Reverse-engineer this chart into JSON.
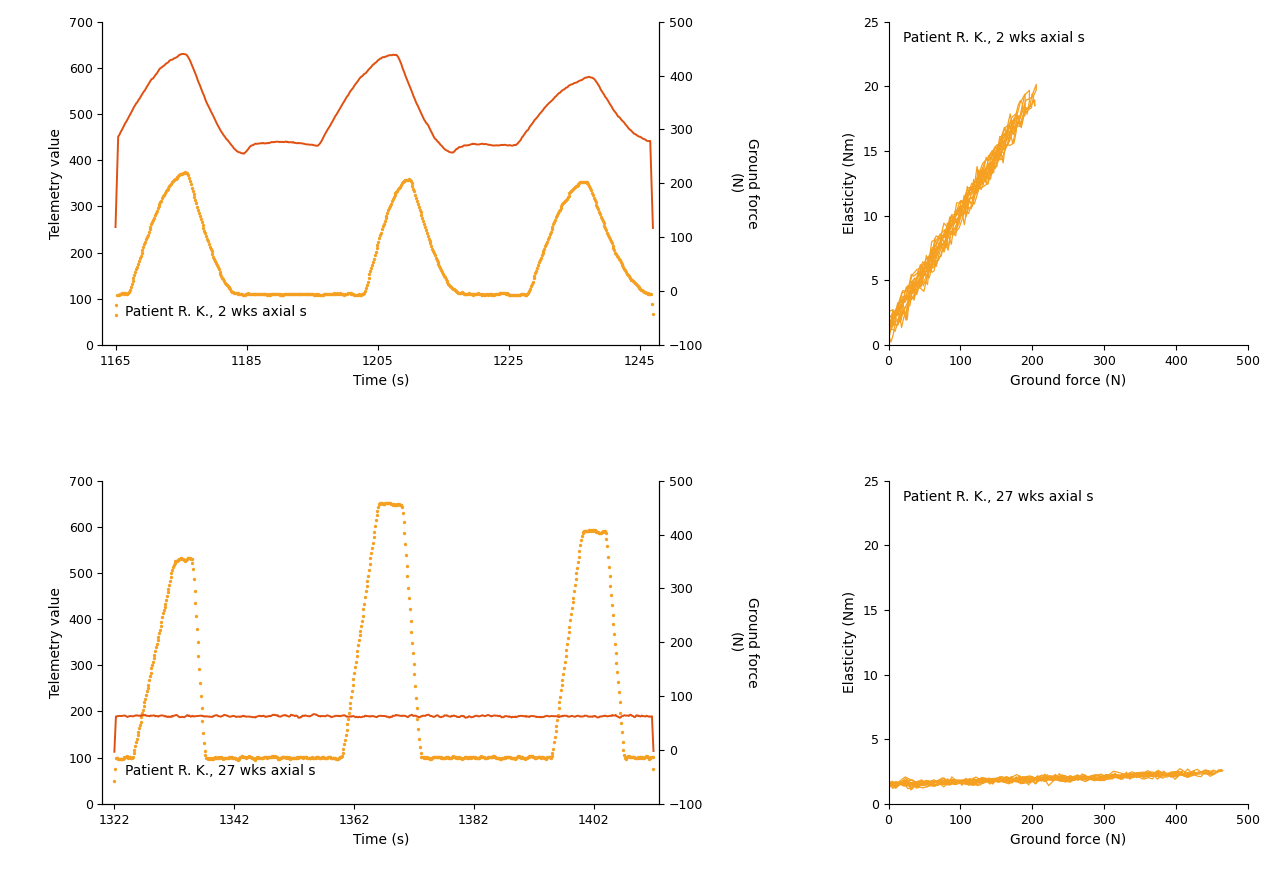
{
  "fig_width": 12.8,
  "fig_height": 8.69,
  "top_left": {
    "title": "Patient R. K., 2 wks axial s",
    "xlabel": "Time (s)",
    "ylabel_left": "Telemetry value",
    "ylabel_right": "Ground force\n(N)",
    "xlim": [
      1163,
      1248
    ],
    "ylim_left": [
      0,
      700
    ],
    "ylim_right": [
      -100,
      500
    ],
    "xticks": [
      1165,
      1185,
      1205,
      1225,
      1245
    ],
    "yticks_left": [
      0,
      100,
      200,
      300,
      400,
      500,
      600,
      700
    ],
    "yticks_right": [
      -100,
      0,
      100,
      200,
      300,
      400,
      500
    ],
    "solid_color": "#E05010",
    "dotted_color": "#F5A020"
  },
  "top_right": {
    "title": "Patient R. K., 2 wks axial s",
    "xlabel": "Ground force (N)",
    "ylabel": "Elasticity (Nm)",
    "xlim": [
      0,
      500
    ],
    "ylim": [
      0,
      25
    ],
    "xticks": [
      0,
      100,
      200,
      300,
      400,
      500
    ],
    "yticks": [
      0,
      5,
      10,
      15,
      20,
      25
    ],
    "line_color": "#F5A020"
  },
  "bottom_left": {
    "title": "Patient R. K., 27 wks axial s",
    "xlabel": "Time (s)",
    "ylabel_left": "Telemetry value",
    "ylabel_right": "Ground force\n(N)",
    "xlim": [
      1320,
      1413
    ],
    "ylim_left": [
      0,
      700
    ],
    "ylim_right": [
      -100,
      500
    ],
    "xticks": [
      1322,
      1342,
      1362,
      1382,
      1402
    ],
    "yticks_left": [
      0,
      100,
      200,
      300,
      400,
      500,
      600,
      700
    ],
    "yticks_right": [
      -100,
      0,
      100,
      200,
      300,
      400,
      500
    ],
    "solid_color": "#E05010",
    "dotted_color": "#F5A020"
  },
  "bottom_right": {
    "title": "Patient R. K., 27 wks axial s",
    "xlabel": "Ground force (N)",
    "ylabel": "Elasticity (Nm)",
    "xlim": [
      0,
      500
    ],
    "ylim": [
      0,
      25
    ],
    "xticks": [
      0,
      100,
      200,
      300,
      400,
      500
    ],
    "yticks": [
      0,
      5,
      10,
      15,
      20,
      25
    ],
    "line_color": "#F5A020"
  },
  "background_color": "#FFFFFF",
  "label_fontsize": 10,
  "title_fontsize": 10,
  "tick_fontsize": 9
}
